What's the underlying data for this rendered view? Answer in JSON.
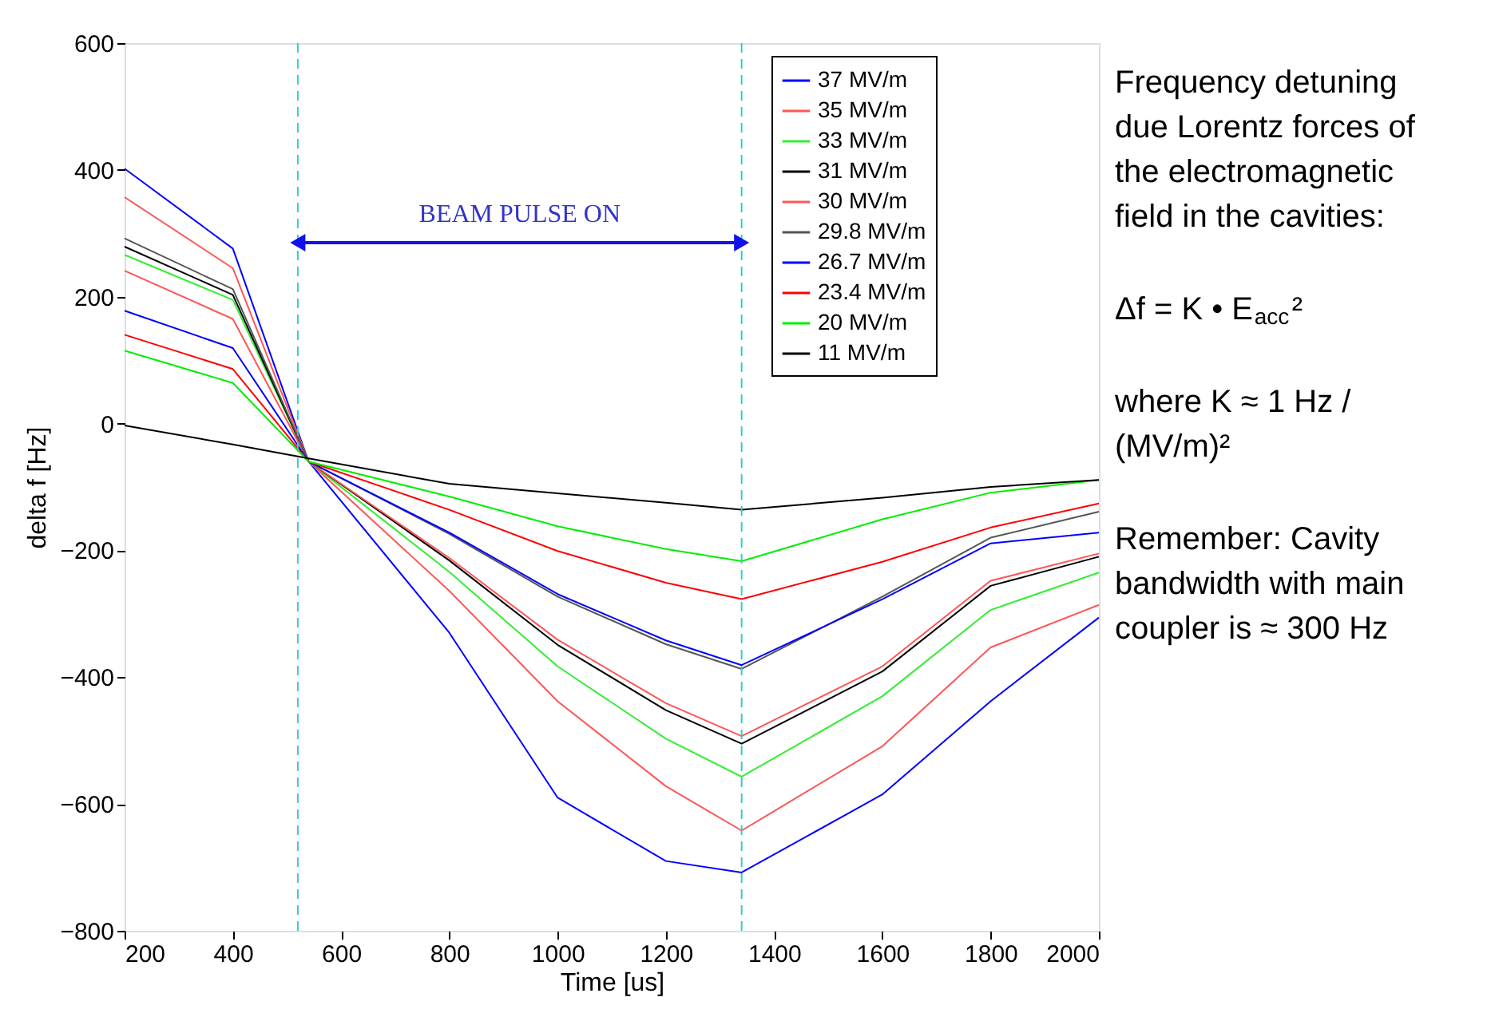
{
  "chart_data": {
    "type": "line",
    "xlabel": "Time [us]",
    "ylabel": "delta f [Hz]",
    "x": [
      200,
      400,
      540,
      800,
      1000,
      1200,
      1340,
      1600,
      1800,
      2000
    ],
    "xlim": [
      200,
      2000
    ],
    "xticks": [
      200,
      400,
      600,
      800,
      1000,
      1200,
      1400,
      1600,
      1800,
      2000
    ],
    "ylim": [
      -800,
      600
    ],
    "yticks": [
      -800,
      -600,
      -400,
      -200,
      0,
      200,
      400,
      600
    ],
    "grid": false,
    "legend": "top right",
    "line_style": "solid",
    "marker": "none",
    "series": [
      {
        "name": "37 MV/m",
        "color": "#0000ff",
        "values": [
          402,
          276,
          -60,
          -330,
          -590,
          -690,
          -708,
          -585,
          -438,
          -306
        ]
      },
      {
        "name": "35 MV/m",
        "color": "#ff5555",
        "values": [
          357,
          245,
          -60,
          -264,
          -438,
          -572,
          -642,
          -509,
          -353,
          -286
        ]
      },
      {
        "name": "33 MV/m",
        "color": "#33ee33",
        "values": [
          266,
          195,
          -60,
          -234,
          -383,
          -497,
          -557,
          -430,
          -294,
          -235
        ]
      },
      {
        "name": "31 MV/m",
        "color": "#000000",
        "values": [
          279,
          203,
          -60,
          -216,
          -349,
          -452,
          -505,
          -391,
          -256,
          -210
        ]
      },
      {
        "name": "30 MV/m",
        "color": "#ff5555",
        "values": [
          241,
          165,
          -60,
          -212,
          -341,
          -441,
          -493,
          -383,
          -248,
          -205
        ]
      },
      {
        "name": "29.8 MV/m",
        "color": "#555555",
        "values": [
          292,
          212,
          -60,
          -174,
          -273,
          -348,
          -387,
          -273,
          -180,
          -139
        ]
      },
      {
        "name": "26.7 MV/m",
        "color": "#0000ff",
        "values": [
          178,
          119,
          -60,
          -172,
          -269,
          -342,
          -381,
          -277,
          -189,
          -172
        ]
      },
      {
        "name": "23.4 MV/m",
        "color": "#ff0000",
        "values": [
          140,
          86,
          -60,
          -136,
          -201,
          -251,
          -277,
          -218,
          -164,
          -126
        ]
      },
      {
        "name": "20 MV/m",
        "color": "#00ee00",
        "values": [
          115,
          64,
          -60,
          -115,
          -162,
          -198,
          -217,
          -151,
          -109,
          -89
        ]
      },
      {
        "name": "11 MV/m",
        "color": "#000000",
        "values": [
          -3,
          -33,
          -55,
          -95,
          -110,
          -125,
          -136,
          -117,
          -100,
          -89
        ]
      }
    ],
    "ref_lines": [
      {
        "axis": "x",
        "value": 520,
        "color": "#33cccc",
        "line_style": "dashed"
      },
      {
        "axis": "x",
        "value": 1340,
        "color": "#33cccc",
        "line_style": "dashed"
      }
    ],
    "annotations": [
      "BEAM PULSE ON",
      "Frequency detuning due Lorentz forces of the electromagnetic field in the cavities:",
      "Δf = K • E$_{acc}$²",
      "where K ≈ 1 Hz / (MV/m)²",
      "Remember: Cavity bandwidth with main coupler is ≈ 300 Hz"
    ]
  }
}
